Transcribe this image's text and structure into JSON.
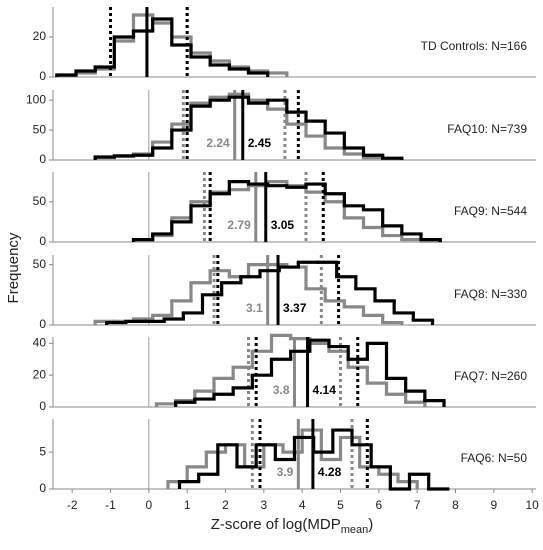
{
  "figure": {
    "ylabel": "Frequency",
    "xlabel": "Z-score of log(MDP",
    "xlabel_sub": "mean",
    "xlabel_end": ")",
    "xlim": [
      -2.5,
      10.1
    ],
    "xticks": [
      -2,
      -1,
      0,
      1,
      2,
      3,
      4,
      5,
      6,
      7,
      8,
      9,
      10
    ]
  },
  "chart_data": [
    {
      "type": "histogram",
      "label": "TD Controls: N=166",
      "ylim": [
        0,
        35
      ],
      "yticks": [
        0,
        20
      ],
      "zero_line": false,
      "show_mean_labels": false,
      "series": [
        {
          "color": "#888888",
          "bins": [
            -1.9,
            -1.4,
            -0.9,
            -0.4,
            0.1,
            0.6,
            1.1,
            1.6,
            2.1,
            2.6,
            3.1,
            3.6
          ],
          "values": [
            2,
            4,
            18,
            31,
            27,
            20,
            12,
            8,
            5,
            3,
            2
          ],
          "mean": -0.05,
          "dotted": [
            -1.0,
            1.0
          ]
        },
        {
          "color": "#000000",
          "bins": [
            -2.4,
            -1.9,
            -1.4,
            -0.9,
            -0.4,
            0.1,
            0.6,
            1.1,
            1.6,
            2.1,
            2.6,
            3.1
          ],
          "values": [
            1,
            3,
            5,
            20,
            23,
            29,
            16,
            10,
            6,
            4,
            2
          ],
          "mean": -0.05,
          "dotted": [
            -1.0,
            1.0
          ]
        }
      ]
    },
    {
      "type": "histogram",
      "label": "FAQ10: N=739",
      "ylim": [
        0,
        117
      ],
      "yticks": [
        0,
        50,
        100
      ],
      "zero_line": true,
      "show_mean_labels": true,
      "series": [
        {
          "color": "#888888",
          "bins": [
            -1.4,
            -0.9,
            -0.4,
            0.1,
            0.6,
            1.1,
            1.6,
            2.1,
            2.6,
            3.1,
            3.6,
            4.1,
            4.6,
            5.1,
            5.6,
            6.1,
            6.6
          ],
          "values": [
            4,
            6,
            10,
            30,
            60,
            95,
            105,
            110,
            100,
            85,
            60,
            40,
            20,
            10,
            4,
            2
          ],
          "mean": 2.24,
          "dotted": [
            0.9,
            3.55
          ]
        },
        {
          "color": "#000000",
          "bins": [
            -1.4,
            -0.9,
            -0.4,
            0.1,
            0.6,
            1.1,
            1.6,
            2.1,
            2.6,
            3.1,
            3.6,
            4.1,
            4.6,
            5.1,
            5.6,
            6.1,
            6.6
          ],
          "values": [
            5,
            7,
            8,
            20,
            50,
            90,
            100,
            105,
            95,
            100,
            80,
            65,
            45,
            20,
            8,
            3
          ],
          "mean": 2.45,
          "dotted": [
            1.0,
            3.9
          ]
        }
      ]
    },
    {
      "type": "histogram",
      "label": "FAQ9: N=544",
      "ylim": [
        0,
        87
      ],
      "yticks": [
        0,
        50
      ],
      "zero_line": true,
      "show_mean_labels": true,
      "series": [
        {
          "color": "#888888",
          "bins": [
            -0.4,
            0.1,
            0.6,
            1.1,
            1.6,
            2.1,
            2.6,
            3.1,
            3.6,
            4.1,
            4.6,
            5.1,
            5.6,
            6.1,
            6.6,
            7.1,
            7.6
          ],
          "values": [
            2,
            8,
            30,
            50,
            62,
            65,
            70,
            75,
            70,
            62,
            50,
            30,
            18,
            8,
            3,
            1
          ],
          "mean": 2.79,
          "dotted": [
            1.45,
            4.1
          ]
        },
        {
          "color": "#000000",
          "bins": [
            -0.4,
            0.1,
            0.6,
            1.1,
            1.6,
            2.1,
            2.6,
            3.1,
            3.6,
            4.1,
            4.6,
            5.1,
            5.6,
            6.1,
            6.6,
            7.1,
            7.6
          ],
          "values": [
            3,
            10,
            25,
            45,
            60,
            75,
            72,
            70,
            68,
            72,
            60,
            45,
            40,
            20,
            10,
            3
          ],
          "mean": 3.05,
          "dotted": [
            1.6,
            4.55
          ]
        }
      ]
    },
    {
      "type": "histogram",
      "label": "FAQ8: N=330",
      "ylim": [
        0,
        58
      ],
      "yticks": [
        0,
        50
      ],
      "zero_line": true,
      "show_mean_labels": true,
      "series": [
        {
          "color": "#888888",
          "bins": [
            -1.4,
            -0.9,
            -0.4,
            0.1,
            0.6,
            1.1,
            1.6,
            2.1,
            2.6,
            3.1,
            3.6,
            4.1,
            4.6,
            5.1,
            5.6,
            6.1,
            6.6
          ],
          "values": [
            3,
            3,
            5,
            8,
            20,
            35,
            45,
            40,
            50,
            50,
            48,
            30,
            20,
            15,
            8,
            2
          ],
          "mean": 3.1,
          "dotted": [
            1.7,
            4.5
          ]
        },
        {
          "color": "#000000",
          "bins": [
            -1.1,
            -0.6,
            -0.1,
            0.4,
            0.9,
            1.4,
            1.9,
            2.4,
            2.9,
            3.4,
            3.9,
            4.4,
            4.9,
            5.4,
            5.9,
            6.4,
            6.9,
            7.4
          ],
          "values": [
            2,
            3,
            3,
            5,
            10,
            25,
            35,
            40,
            45,
            48,
            52,
            52,
            40,
            30,
            20,
            10,
            4
          ],
          "mean": 3.37,
          "dotted": [
            1.8,
            4.95
          ]
        }
      ]
    },
    {
      "type": "histogram",
      "label": "FAQ7: N=260",
      "ylim": [
        0,
        44
      ],
      "yticks": [
        0,
        20,
        40
      ],
      "zero_line": true,
      "show_mean_labels": true,
      "series": [
        {
          "color": "#888888",
          "bins": [
            0.2,
            0.7,
            1.2,
            1.7,
            2.2,
            2.7,
            3.2,
            3.7,
            4.2,
            4.7,
            5.2,
            5.7,
            6.2,
            6.7,
            7.2
          ],
          "values": [
            2,
            4,
            10,
            18,
            25,
            35,
            45,
            43,
            40,
            35,
            25,
            15,
            8,
            3
          ],
          "mean": 3.8,
          "dotted": [
            2.6,
            5.0
          ]
        },
        {
          "color": "#000000",
          "bins": [
            0.7,
            1.2,
            1.7,
            2.2,
            2.7,
            3.2,
            3.7,
            4.2,
            4.7,
            5.2,
            5.7,
            6.2,
            6.7,
            7.2,
            7.7
          ],
          "values": [
            3,
            5,
            8,
            12,
            20,
            30,
            35,
            42,
            38,
            30,
            40,
            18,
            10,
            4
          ],
          "mean": 4.14,
          "dotted": [
            2.8,
            5.45
          ]
        }
      ]
    },
    {
      "type": "histogram",
      "label": "FAQ6: N=50",
      "ylim": [
        0,
        9.5
      ],
      "yticks": [
        0,
        5
      ],
      "zero_line": true,
      "show_mean_labels": true,
      "series": [
        {
          "color": "#888888",
          "bins": [
            0.5,
            1.0,
            1.5,
            2.0,
            2.5,
            3.0,
            3.5,
            4.0,
            4.5,
            5.0,
            5.5,
            6.0,
            6.5,
            7.0
          ],
          "values": [
            1,
            3,
            5,
            6,
            3,
            6,
            5,
            8,
            4,
            7,
            3,
            2,
            1
          ],
          "mean": 3.9,
          "dotted": [
            2.7,
            5.3
          ]
        },
        {
          "color": "#000000",
          "bins": [
            0.8,
            1.3,
            1.8,
            2.3,
            2.8,
            3.3,
            3.8,
            4.3,
            4.8,
            5.3,
            5.8,
            6.3,
            6.8,
            7.3,
            7.8
          ],
          "values": [
            1,
            2,
            6,
            3,
            6,
            4,
            7,
            5,
            8,
            6,
            3,
            0,
            2,
            0
          ],
          "mean": 4.28,
          "dotted": [
            2.9,
            5.7
          ]
        }
      ]
    }
  ]
}
